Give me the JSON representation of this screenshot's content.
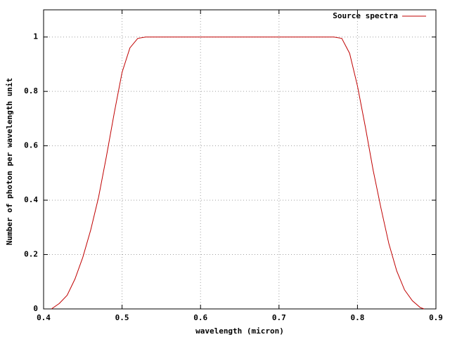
{
  "chart_data": {
    "type": "line",
    "xlabel": "wavelength (micron)",
    "ylabel": "Number of photon per wavelength unit",
    "x": [
      0.41,
      0.42,
      0.43,
      0.44,
      0.45,
      0.46,
      0.47,
      0.48,
      0.49,
      0.5,
      0.51,
      0.52,
      0.53,
      0.54,
      0.55,
      0.56,
      0.57,
      0.58,
      0.59,
      0.6,
      0.61,
      0.62,
      0.63,
      0.64,
      0.65,
      0.66,
      0.67,
      0.68,
      0.69,
      0.7,
      0.71,
      0.72,
      0.73,
      0.74,
      0.75,
      0.76,
      0.77,
      0.78,
      0.79,
      0.8,
      0.81,
      0.82,
      0.83,
      0.84,
      0.85,
      0.86,
      0.87,
      0.88,
      0.885
    ],
    "series": [
      {
        "name": "Source spectra",
        "color": "#c00000",
        "values": [
          0,
          0.02,
          0.05,
          0.11,
          0.19,
          0.29,
          0.41,
          0.56,
          0.72,
          0.87,
          0.96,
          0.995,
          1,
          1,
          1,
          1,
          1,
          1,
          1,
          1,
          1,
          1,
          1,
          1,
          1,
          1,
          1,
          1,
          1,
          1,
          1,
          1,
          1,
          1,
          1,
          1,
          1,
          0.995,
          0.94,
          0.82,
          0.67,
          0.51,
          0.37,
          0.24,
          0.14,
          0.07,
          0.03,
          0.005,
          0
        ]
      }
    ],
    "xlim": [
      0.4,
      0.9
    ],
    "xticks": [
      0.4,
      0.5,
      0.6,
      0.7,
      0.8,
      0.9
    ],
    "ylim": [
      0,
      1.1
    ],
    "yticks": [
      0,
      0.2,
      0.4,
      0.6,
      0.8,
      1
    ],
    "grid": true,
    "legend": "top-right"
  }
}
